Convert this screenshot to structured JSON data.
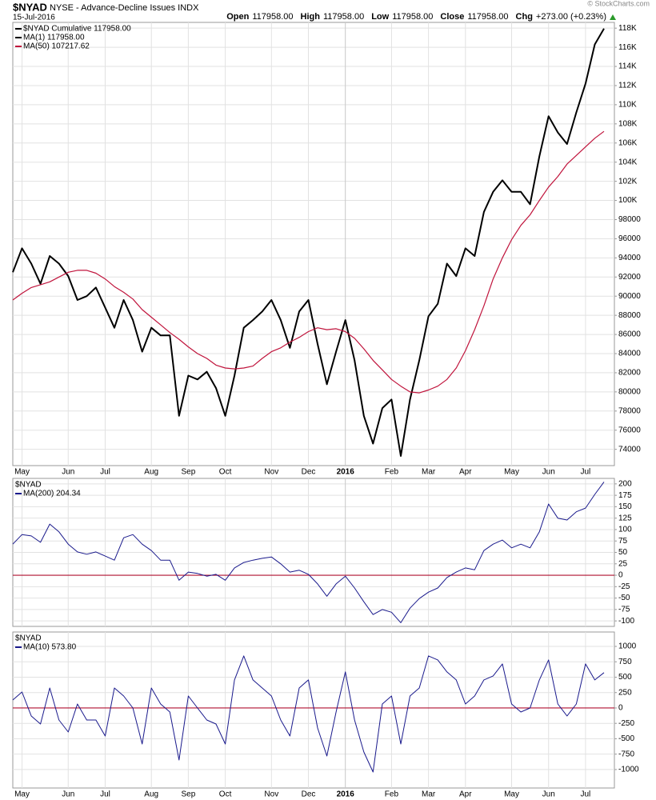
{
  "header": {
    "symbol": "$NYAD",
    "name": "NYSE - Advance-Decline Issues INDX",
    "date": "15-Jul-2016",
    "watermark": "© StockCharts.com",
    "quote": [
      {
        "label": "Open",
        "value": "117958.00"
      },
      {
        "label": "High",
        "value": "117958.00"
      },
      {
        "label": "Low",
        "value": "117958.00"
      },
      {
        "label": "Close",
        "value": "117958.00"
      },
      {
        "label": "Chg",
        "value": "+273.00 (+0.23%)"
      }
    ]
  },
  "chart_data": [
    {
      "type": "line",
      "grid": true,
      "categories": [
        null,
        "May",
        null,
        null,
        null,
        null,
        "Jun",
        null,
        null,
        null,
        "Jul",
        null,
        null,
        null,
        null,
        "Aug",
        null,
        null,
        null,
        "Sep",
        null,
        null,
        null,
        "Oct",
        null,
        null,
        null,
        null,
        "Nov",
        null,
        null,
        null,
        "Dec",
        null,
        null,
        null,
        "2016",
        null,
        null,
        null,
        null,
        "Feb",
        null,
        null,
        null,
        "Mar",
        null,
        null,
        null,
        "Apr",
        null,
        null,
        null,
        null,
        "May",
        null,
        null,
        null,
        "Jun",
        null,
        null,
        null,
        "Jul",
        null,
        null
      ],
      "ylim": [
        72300,
        118600
      ],
      "yticks": [
        {
          "value": 118000,
          "label": "118K"
        },
        {
          "value": 116000,
          "label": "116K"
        },
        {
          "value": 114000,
          "label": "114K"
        },
        {
          "value": 112000,
          "label": "112K"
        },
        {
          "value": 110000,
          "label": "110K"
        },
        {
          "value": 108000,
          "label": "108K"
        },
        {
          "value": 106000,
          "label": "106K"
        },
        {
          "value": 104000,
          "label": "104K"
        },
        {
          "value": 102000,
          "label": "102K"
        },
        {
          "value": 100000,
          "label": "100K"
        },
        98000,
        96000,
        94000,
        92000,
        90000,
        88000,
        86000,
        84000,
        82000,
        80000,
        78000,
        76000,
        74000
      ],
      "series": [
        {
          "name": "$NYAD Cumulative 117958.00",
          "color": "#000000",
          "width": 2,
          "values": [
            92500,
            95000,
            93400,
            91300,
            94200,
            93400,
            92100,
            89600,
            90000,
            90900,
            88800,
            86700,
            89600,
            87500,
            84200,
            86700,
            85900,
            85900,
            77500,
            81700,
            81300,
            82100,
            80400,
            77500,
            81700,
            86700,
            87500,
            88400,
            89600,
            87500,
            84600,
            88400,
            89600,
            85000,
            80800,
            84200,
            87500,
            83300,
            77500,
            74600,
            78300,
            79200,
            73300,
            79200,
            83300,
            87900,
            89200,
            93400,
            92100,
            95000,
            94200,
            98800,
            100900,
            102100,
            100900,
            100900,
            99600,
            104600,
            108800,
            107100,
            105900,
            109200,
            112200,
            116300,
            117958
          ]
        },
        {
          "name": "MA(50) 107217.62",
          "color": "#c0143c",
          "width": 1.2,
          "values": [
            89600,
            90300,
            90900,
            91200,
            91500,
            92000,
            92500,
            92700,
            92700,
            92400,
            91800,
            91000,
            90400,
            89700,
            88600,
            87800,
            87000,
            86200,
            85500,
            84700,
            84000,
            83500,
            82800,
            82500,
            82400,
            82500,
            82700,
            83500,
            84200,
            84600,
            85200,
            85700,
            86300,
            86700,
            86500,
            86600,
            86300,
            85600,
            84500,
            83300,
            82300,
            81300,
            80600,
            80000,
            79900,
            80200,
            80600,
            81300,
            82500,
            84300,
            86500,
            89000,
            91800,
            94000,
            95900,
            97400,
            98500,
            100000,
            101400,
            102500,
            103800,
            104700,
            105600,
            106500,
            107217.62
          ]
        }
      ],
      "extra_legend": [
        {
          "name": "MA(1) 117958.00",
          "color": "#000000"
        }
      ]
    },
    {
      "type": "line",
      "grid": true,
      "label": "$NYAD",
      "ylim": [
        -112,
        212
      ],
      "yticks": [
        200,
        175,
        150,
        125,
        100,
        75,
        50,
        25,
        0,
        -25,
        -50,
        -75,
        -100
      ],
      "reference_line": {
        "value": 0,
        "color": "#b01030"
      },
      "series": [
        {
          "name": "MA(200) 204.34",
          "color": "#1a1a8c",
          "width": 1,
          "values": [
            68,
            89,
            86,
            72,
            112,
            95,
            68,
            51,
            46,
            51,
            42,
            33,
            82,
            89,
            68,
            54,
            33,
            33,
            -11,
            7,
            4,
            -2,
            2,
            -11,
            16,
            28,
            33,
            37,
            40,
            25,
            7,
            11,
            2,
            -19,
            -46,
            -19,
            -2,
            -28,
            -58,
            -86,
            -75,
            -81,
            -104,
            -72,
            -51,
            -37,
            -28,
            -5,
            7,
            16,
            12,
            54,
            68,
            77,
            60,
            68,
            60,
            95,
            156,
            125,
            121,
            139,
            147,
            177,
            204.34
          ]
        }
      ]
    },
    {
      "type": "line",
      "grid": true,
      "label": "$NYAD",
      "categories": [
        null,
        "May",
        null,
        null,
        null,
        null,
        "Jun",
        null,
        null,
        null,
        "Jul",
        null,
        null,
        null,
        null,
        "Aug",
        null,
        null,
        null,
        "Sep",
        null,
        null,
        null,
        "Oct",
        null,
        null,
        null,
        null,
        "Nov",
        null,
        null,
        null,
        "Dec",
        null,
        null,
        null,
        "2016",
        null,
        null,
        null,
        null,
        "Feb",
        null,
        null,
        null,
        "Mar",
        null,
        null,
        null,
        "Apr",
        null,
        null,
        null,
        null,
        "May",
        null,
        null,
        null,
        "Jun",
        null,
        null,
        null,
        "Jul",
        null,
        null
      ],
      "ylim": [
        -1300,
        1234
      ],
      "yticks": [
        1000,
        750,
        500,
        250,
        0,
        -250,
        -500,
        -750,
        -1000
      ],
      "reference_line": {
        "value": 0,
        "color": "#b01030"
      },
      "series": [
        {
          "name": "MA(10) 573.80",
          "color": "#1a1a8c",
          "width": 1,
          "values": [
            130,
            260,
            -130,
            -260,
            325,
            -195,
            -390,
            65,
            -195,
            -195,
            -455,
            325,
            195,
            0,
            -585,
            325,
            65,
            -65,
            -845,
            195,
            0,
            -195,
            -260,
            -585,
            455,
            845,
            455,
            325,
            195,
            -195,
            -455,
            325,
            455,
            -325,
            -780,
            -65,
            585,
            -195,
            -715,
            -1040,
            65,
            195,
            -585,
            195,
            325,
            845,
            780,
            585,
            455,
            65,
            195,
            455,
            520,
            715,
            65,
            -65,
            0,
            455,
            780,
            65,
            -130,
            65,
            715,
            455,
            573.8
          ]
        }
      ]
    }
  ]
}
